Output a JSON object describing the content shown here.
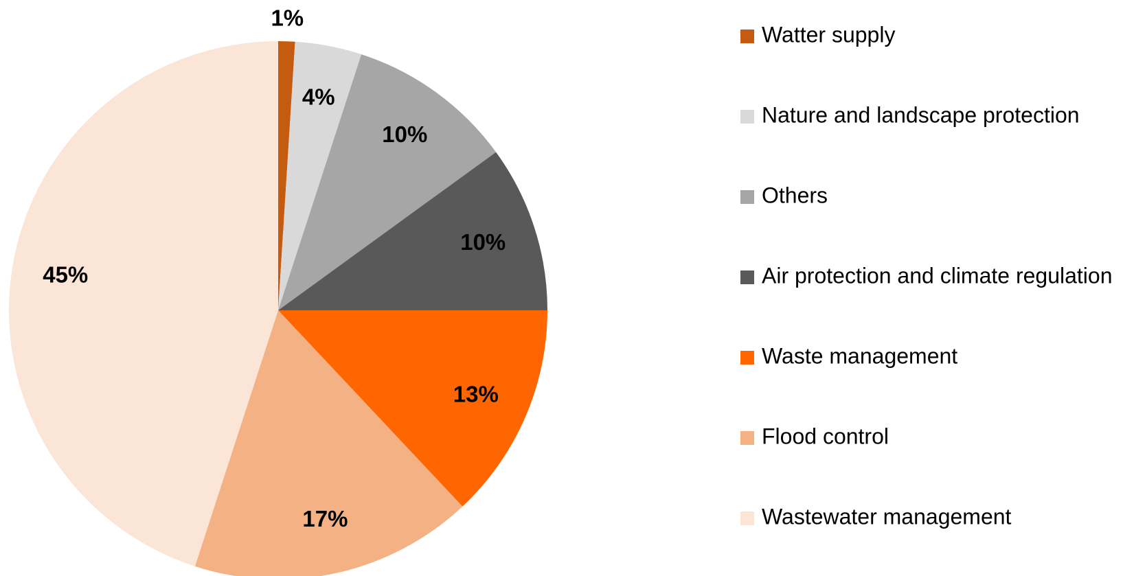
{
  "chart_data": {
    "type": "pie",
    "categories": [
      "Watter supply",
      "Nature and landscape protection",
      "Others",
      "Air protection and climate regulation",
      "Waste management",
      "Flood control",
      "Wastewater management"
    ],
    "values": [
      1,
      4,
      10,
      10,
      13,
      17,
      45
    ],
    "value_labels": [
      "1%",
      "4%",
      "10%",
      "10%",
      "13%",
      "17%",
      "45%"
    ],
    "colors": [
      "#c55a11",
      "#d9d9d9",
      "#a6a6a6",
      "#595959",
      "#ff6600",
      "#f4b183",
      "#fbe5d6"
    ],
    "legend": "right"
  }
}
